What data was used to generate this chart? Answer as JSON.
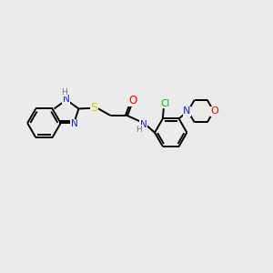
{
  "bg_color": "#ebebeb",
  "bond_color": "#000000",
  "N_color": "#1a1aff",
  "O_color": "#ff0000",
  "S_color": "#cccc00",
  "Cl_color": "#00bb00",
  "H_color": "#7a7a7a",
  "font_size": 7.5,
  "bond_width": 1.4,
  "figsize": [
    3.0,
    3.0
  ],
  "dpi": 100,
  "xlim": [
    0,
    10
  ],
  "ylim": [
    0,
    10
  ]
}
